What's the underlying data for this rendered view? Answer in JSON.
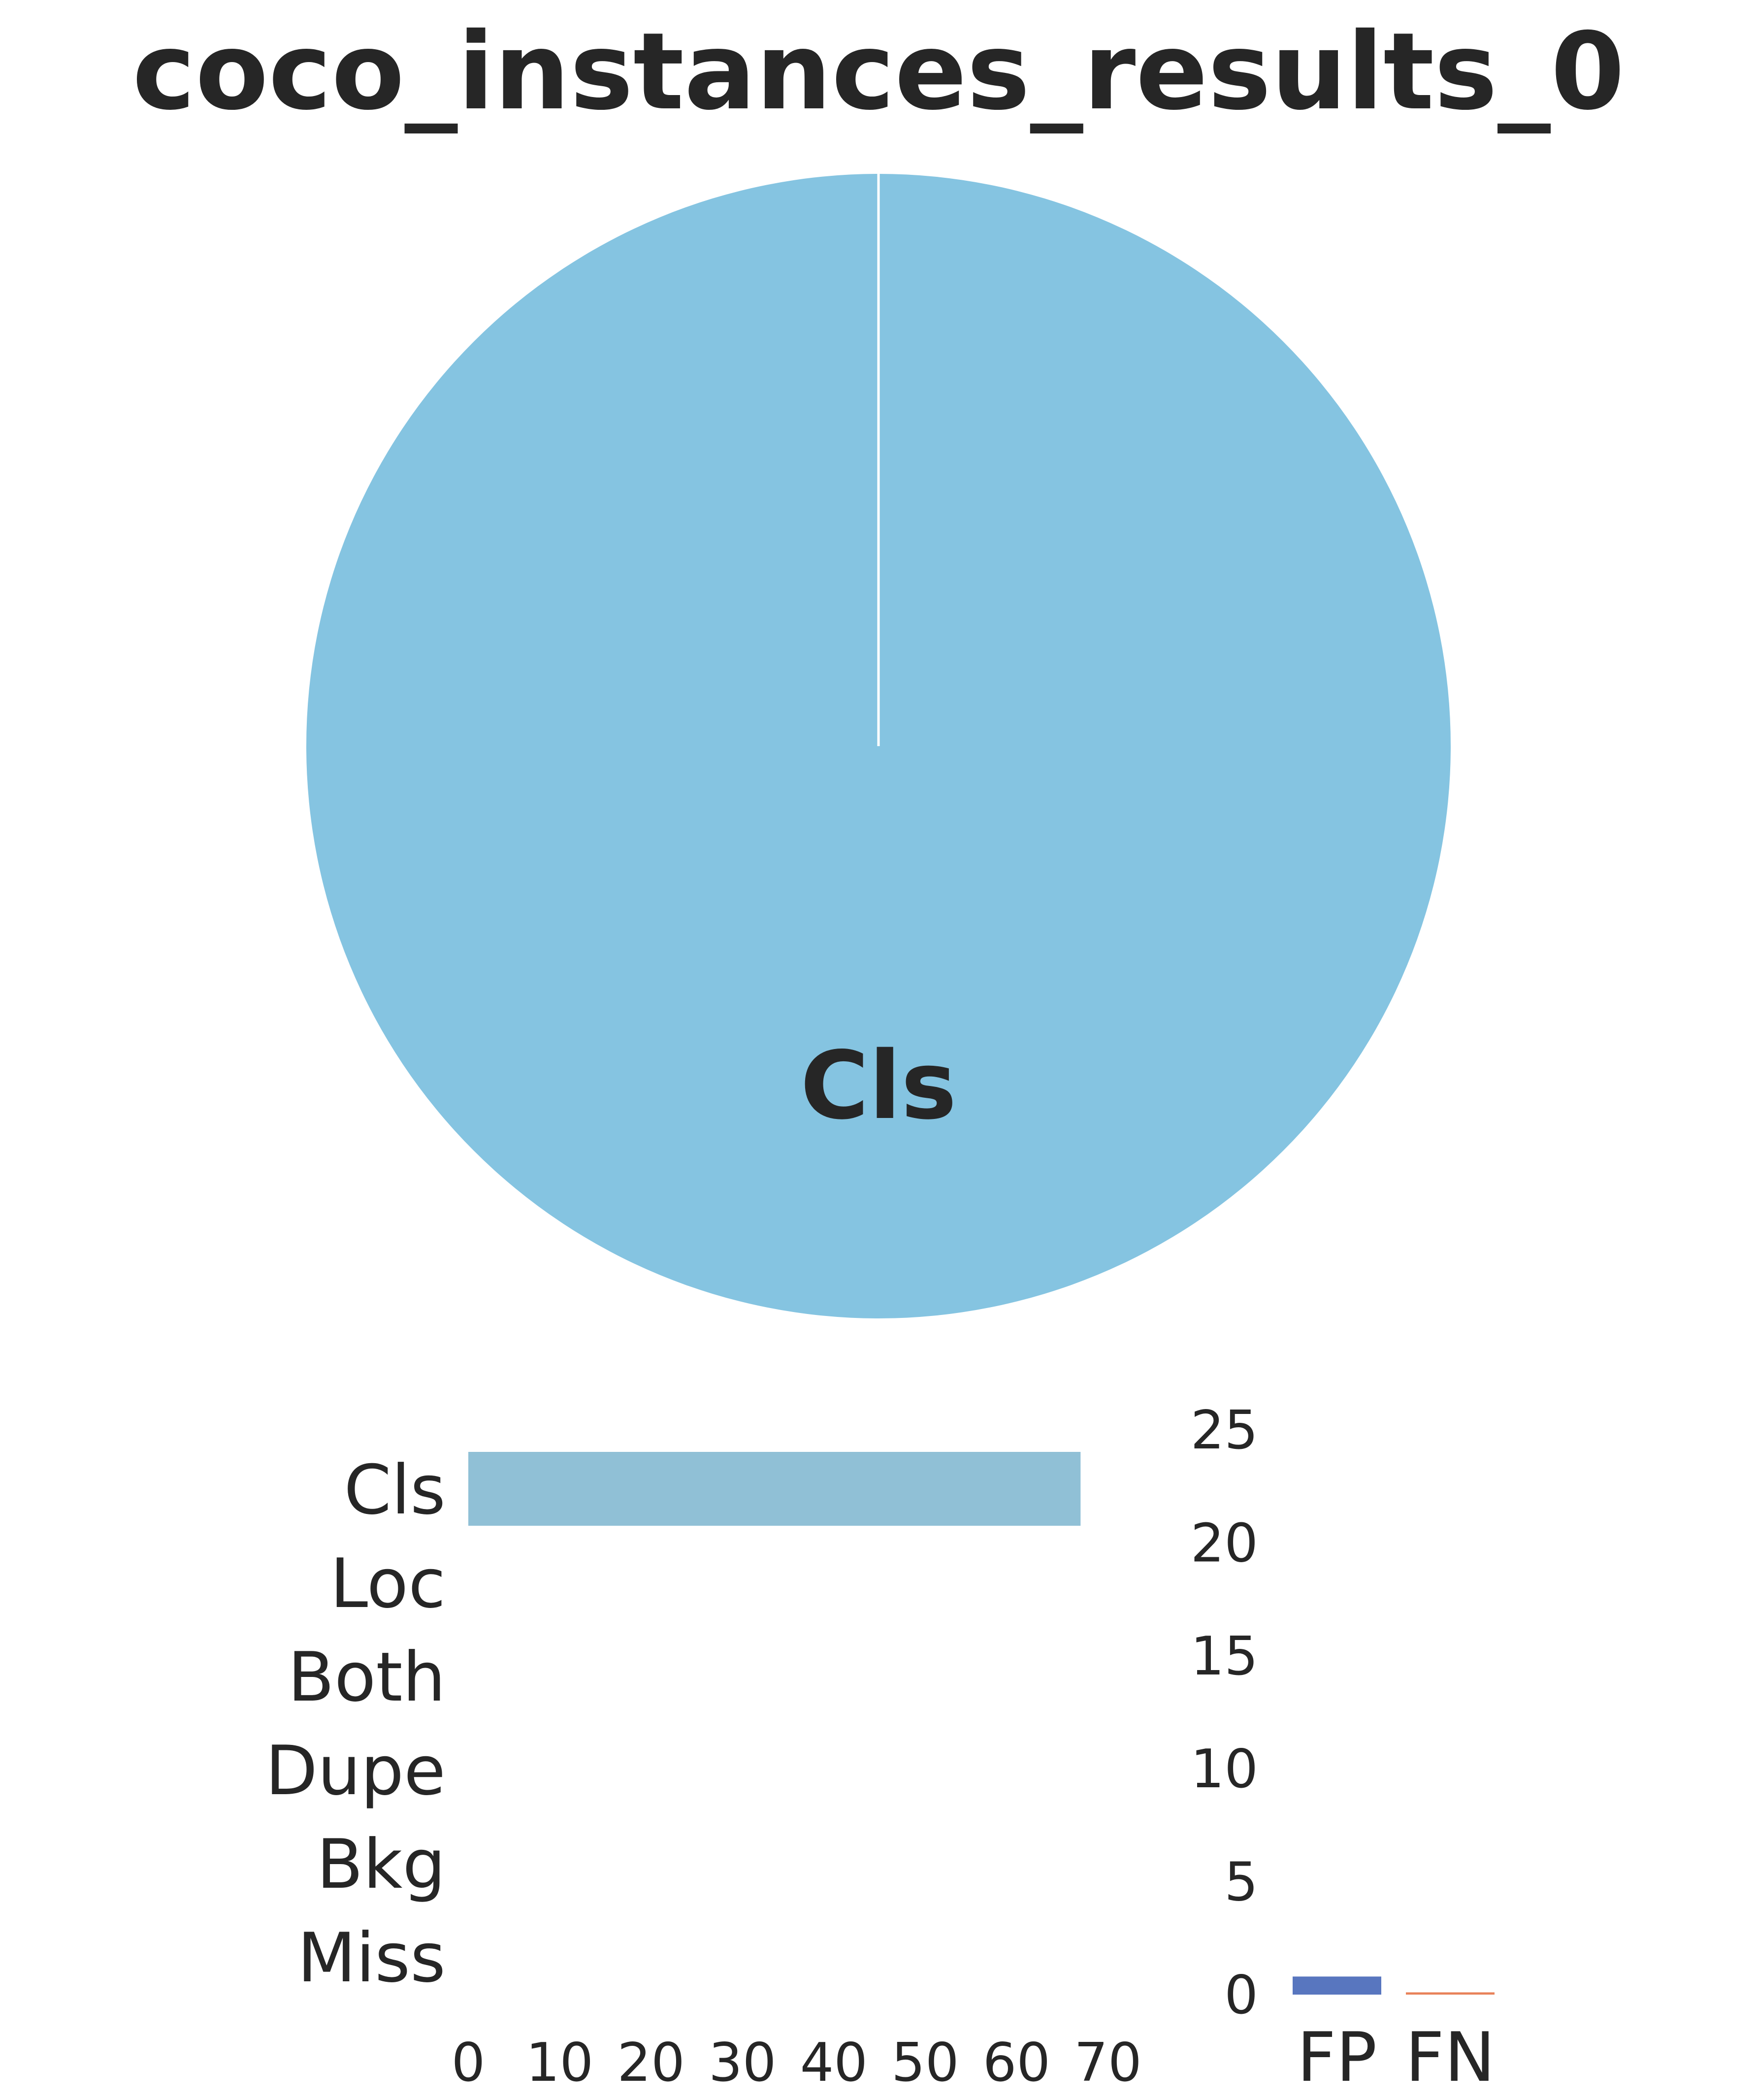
{
  "chart_data": [
    {
      "type": "pie",
      "title": "coco_instances_results_0",
      "labels": [
        "Cls"
      ],
      "values": [
        100
      ],
      "colors": [
        "#85c4e1"
      ]
    },
    {
      "type": "bar",
      "orientation": "horizontal",
      "categories": [
        "Cls",
        "Loc",
        "Both",
        "Dupe",
        "Bkg",
        "Miss"
      ],
      "values": [
        67,
        0,
        0,
        0,
        0,
        0
      ],
      "xticks": [
        0,
        10,
        20,
        30,
        40,
        50,
        60,
        70
      ],
      "xlim": [
        0,
        70
      ],
      "color": "#90c0d6",
      "grid": false
    },
    {
      "type": "bar",
      "orientation": "vertical",
      "categories": [
        "FP",
        "FN"
      ],
      "values": [
        0.8,
        0.1
      ],
      "yticks": [
        0,
        5,
        10,
        15,
        20,
        25
      ],
      "ylim": [
        0,
        25
      ],
      "colors": [
        "#5876bf",
        "#e8825a"
      ],
      "grid": false
    }
  ]
}
